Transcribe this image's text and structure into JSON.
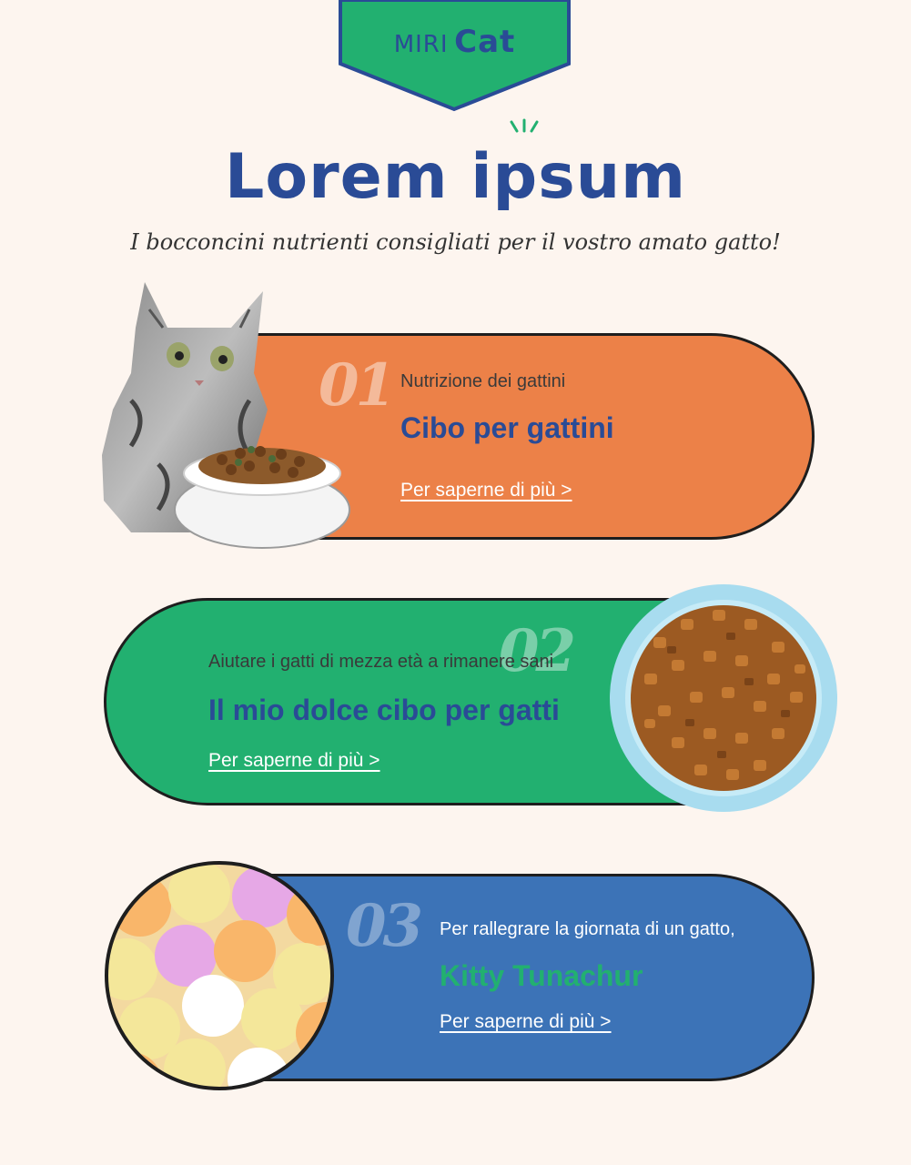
{
  "logo": {
    "miri": "MIRI",
    "cat": "Cat"
  },
  "header": {
    "title": "Lorem ipsum",
    "subtitle": "I bocconcini nutrienti consigliati per il vostro amato gatto!"
  },
  "cards": [
    {
      "number": "01",
      "eyebrow": "Nutrizione dei gattini",
      "title": "Cibo per gattini",
      "link": "Per saperne di più >",
      "color": "#ec8148"
    },
    {
      "number": "02",
      "eyebrow": "Aiutare i gatti di mezza età a rimanere sani",
      "title": "Il mio dolce cibo per gatti",
      "link": "Per saperne di più >",
      "color": "#22b070"
    },
    {
      "number": "03",
      "eyebrow": "Per rallegrare la giornata di un gatto,",
      "title": "Kitty Tunachur",
      "link": "Per saperne di più >",
      "color": "#3c73b7"
    }
  ],
  "colors": {
    "brand_blue": "#2a4b96",
    "brand_green": "#22b070",
    "background": "#fdf5ef"
  },
  "images": [
    "kitten-with-food-bowl",
    "bowl-of-dry-cat-food",
    "heart-shaped-candies"
  ]
}
